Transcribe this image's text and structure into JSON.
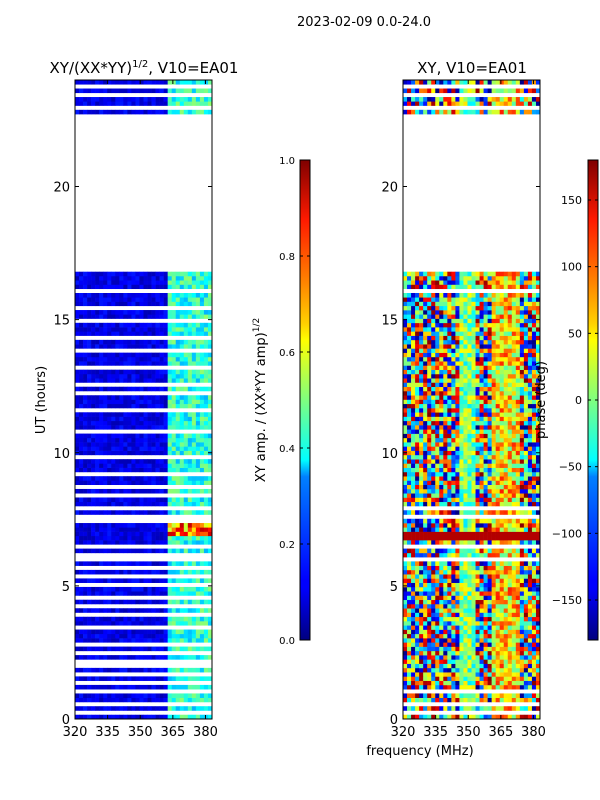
{
  "suptitle": "2023-02-09 0.0-24.0",
  "xlabel": "frequency (MHz)",
  "chart_data": [
    {
      "type": "heatmap",
      "title_main": "XY/(XX*YY)",
      "title_sup": "1/2",
      "title_tail": ", V10=EA01",
      "ylabel": "UT (hours)",
      "xlim": [
        320,
        383
      ],
      "ylim": [
        0,
        24
      ],
      "xticks": [
        320,
        335,
        350,
        365,
        380
      ],
      "yticks": [
        0,
        5,
        10,
        15,
        20
      ],
      "colorbar": {
        "label_main": "XY amp. / (XX*YY amp)",
        "label_sup": "1/2",
        "range": [
          0.0,
          1.0
        ],
        "ticks": [
          "0.0",
          "0.2",
          "0.4",
          "0.6",
          "0.8",
          "1.0"
        ],
        "tick_values": [
          0.0,
          0.2,
          0.4,
          0.6,
          0.8,
          1.0
        ]
      },
      "data_gaps_hours": [
        [
          16.7,
          22.6
        ]
      ],
      "flagged_rows_hours": [
        0.2,
        0.5,
        0.9,
        1.3,
        1.6,
        1.9,
        2.1,
        2.4,
        2.8,
        3.4,
        3.8,
        4.1,
        4.5,
        4.9,
        5.3,
        5.6,
        5.9,
        6.1,
        6.4,
        7.4,
        7.6,
        7.9,
        8.3,
        8.7,
        9.2,
        9.7,
        10.0,
        10.7,
        11.5,
        12.2,
        12.5,
        13.1,
        13.8,
        14.3,
        14.9,
        15.3,
        15.6,
        16.0,
        22.9,
        23.3,
        23.6
      ],
      "bright_band_mhz": [
        362,
        382
      ],
      "description_values": "amplitude ratio mostly ~0.05-0.15 below 362 MHz, ~0.3-0.5 in 362-382 MHz; peaks ~0.8-1.0 near 7 h"
    },
    {
      "type": "heatmap",
      "title_main": "XY, V10=EA01",
      "xlim": [
        320,
        383
      ],
      "ylim": [
        0,
        24
      ],
      "xticks": [
        320,
        335,
        350,
        365,
        380
      ],
      "yticks": [
        0,
        5,
        10,
        15,
        20
      ],
      "colorbar": {
        "label": "phase (deg)",
        "range": [
          -180,
          180
        ],
        "ticks": [
          "−150",
          "−100",
          "−50",
          "0",
          "50",
          "100",
          "150"
        ],
        "tick_values": [
          -150,
          -100,
          -50,
          0,
          50,
          100,
          150
        ]
      },
      "data_gaps_hours": [
        [
          16.7,
          22.6
        ]
      ],
      "flagged_rows_hours": [
        0.2,
        0.5,
        0.9,
        5.9,
        6.4,
        7.6,
        7.9,
        16.0,
        22.9,
        23.3,
        23.6
      ]
    }
  ]
}
